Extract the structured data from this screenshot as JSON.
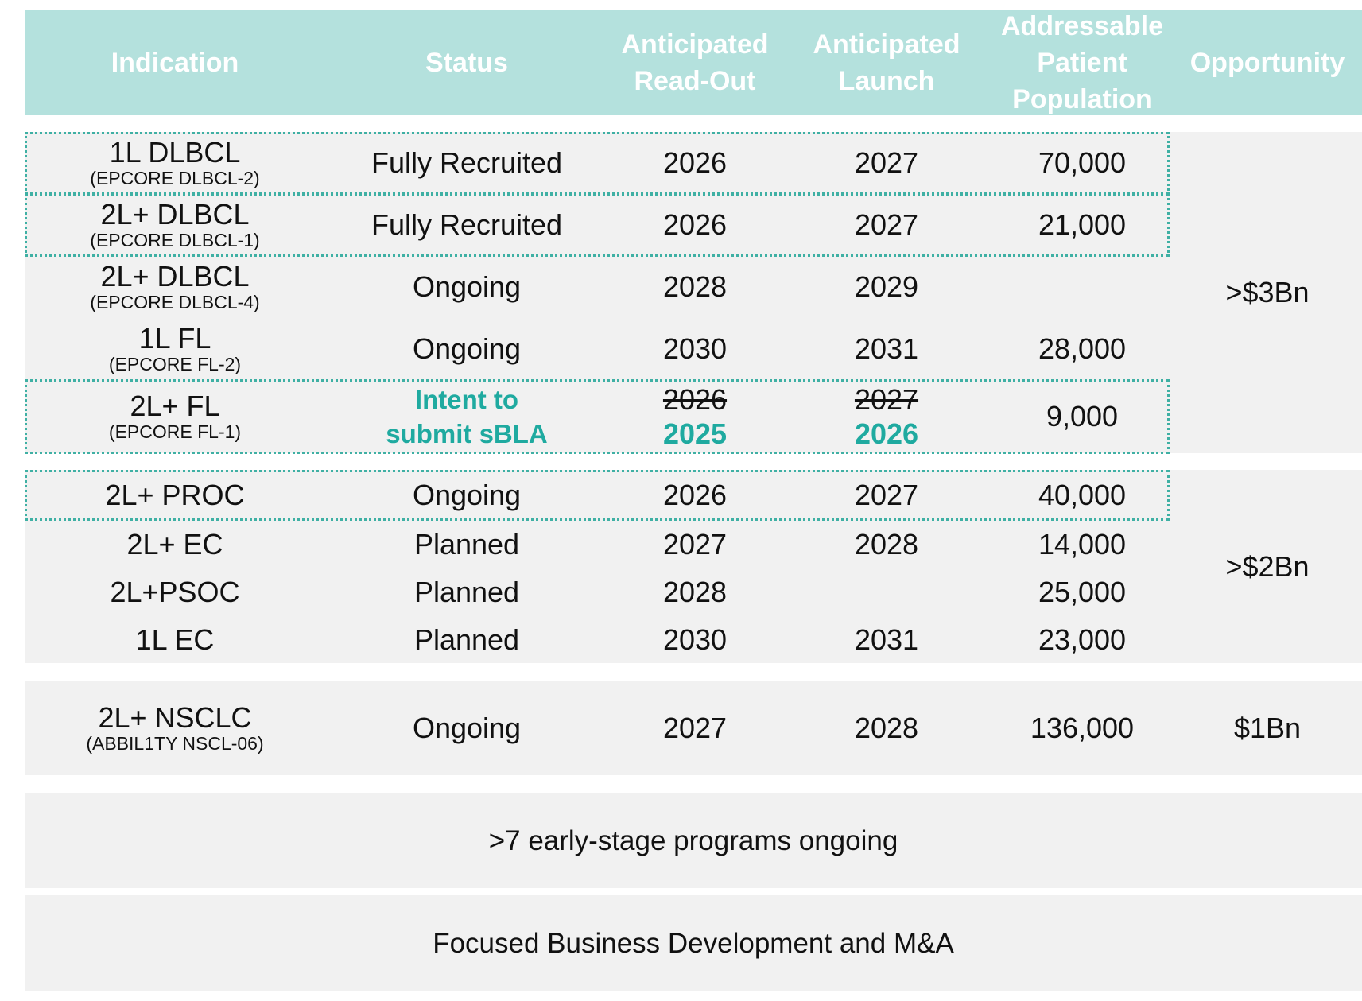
{
  "header": {
    "indication": "Indication",
    "status": "Status",
    "readout": [
      "Anticipated",
      "Read-Out"
    ],
    "launch": [
      "Anticipated",
      "Launch"
    ],
    "population": [
      "Addressable",
      "Patient",
      "Population"
    ],
    "opportunity": "Opportunity"
  },
  "heme": {
    "opportunity": ">$3Bn",
    "rows": [
      {
        "indication": "1L DLBCL",
        "trial": "(EPCORE DLBCL-2)",
        "status": "Fully Recruited",
        "readout": "2026",
        "launch": "2027",
        "population": "70,000"
      },
      {
        "indication": "2L+ DLBCL",
        "trial": "(EPCORE DLBCL-1)",
        "status": "Fully Recruited",
        "readout": "2026",
        "launch": "2027",
        "population": "21,000"
      },
      {
        "indication": "2L+ DLBCL",
        "trial": "(EPCORE DLBCL-4)",
        "status": "Ongoing",
        "readout": "2028",
        "launch": "2029",
        "population": ""
      },
      {
        "indication": "1L FL",
        "trial": "(EPCORE FL-2)",
        "status": "Ongoing",
        "readout": "2030",
        "launch": "2031",
        "population": "28,000"
      }
    ],
    "fl_row": {
      "indication": "2L+ FL",
      "trial": "(EPCORE FL-1)",
      "status_line1": "Intent to",
      "status_line2": "submit sBLA",
      "readout_old": "2026",
      "readout_new": "2025",
      "launch_old": "2027",
      "launch_new": "2026",
      "population": "9,000"
    }
  },
  "solid": {
    "opportunity": ">$2Bn",
    "rows": [
      {
        "indication": "2L+ PROC",
        "status": "Ongoing",
        "readout": "2026",
        "launch": "2027",
        "population": "40,000"
      },
      {
        "indication": "2L+ EC",
        "status": "Planned",
        "readout": "2027",
        "launch": "2028",
        "population": "14,000"
      },
      {
        "indication": "2L+PSOC",
        "status": "Planned",
        "readout": "2028",
        "launch": "",
        "population": "25,000"
      },
      {
        "indication": "1L EC",
        "status": "Planned",
        "readout": "2030",
        "launch": "2031",
        "population": "23,000"
      }
    ]
  },
  "nsclc": {
    "indication": "2L+ NSCLC",
    "trial": "(ABBIL1TY NSCL-06)",
    "status": "Ongoing",
    "readout": "2027",
    "launch": "2028",
    "population": "136,000",
    "opportunity": "$1Bn"
  },
  "footer": {
    "early_stage": ">7 early-stage programs ongoing",
    "bd": "Focused Business Development and M&A"
  },
  "colors": {
    "header_bg": "#b4e1dd",
    "accent": "#1faaa0",
    "panel_bg": "#f1f1f1"
  }
}
